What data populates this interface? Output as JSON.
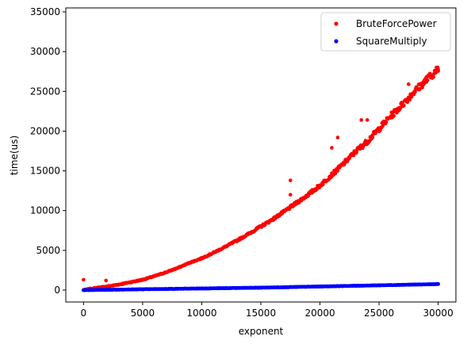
{
  "chart_data": {
    "type": "scatter",
    "title": "",
    "xlabel": "exponent",
    "ylabel": "time(us)",
    "xlim": [
      -1500,
      31500
    ],
    "ylim": [
      -1500,
      35500
    ],
    "xticks": [
      0,
      5000,
      10000,
      15000,
      20000,
      25000,
      30000
    ],
    "yticks": [
      0,
      5000,
      10000,
      15000,
      20000,
      25000,
      30000,
      35000
    ],
    "grid": false,
    "legend_position": "top-right",
    "series": [
      {
        "name": "BruteForcePower",
        "color": "#ff0000",
        "x": [
          0,
          1000,
          2000,
          3000,
          4000,
          5000,
          6000,
          7000,
          8000,
          9000,
          10000,
          11000,
          12000,
          13000,
          14000,
          15000,
          16000,
          17000,
          18000,
          19000,
          20000,
          21000,
          22000,
          23000,
          24000,
          25000,
          26000,
          27000,
          28000,
          29000,
          30000
        ],
        "y": [
          0,
          250,
          450,
          700,
          1000,
          1300,
          1750,
          2250,
          2800,
          3450,
          4000,
          4700,
          5450,
          6250,
          7100,
          8000,
          8900,
          9900,
          10950,
          12000,
          13150,
          14500,
          15900,
          17400,
          18700,
          20300,
          21900,
          23400,
          25000,
          26400,
          27800
        ]
      },
      {
        "name": "SquareMultiply",
        "color": "#0000ff",
        "x": [
          0,
          1000,
          2000,
          3000,
          4000,
          5000,
          6000,
          7000,
          8000,
          9000,
          10000,
          11000,
          12000,
          13000,
          14000,
          15000,
          16000,
          17000,
          18000,
          19000,
          20000,
          21000,
          22000,
          23000,
          24000,
          25000,
          26000,
          27000,
          28000,
          29000,
          30000
        ],
        "y": [
          0,
          20,
          40,
          60,
          80,
          100,
          120,
          140,
          160,
          180,
          200,
          220,
          240,
          260,
          280,
          300,
          330,
          360,
          390,
          420,
          450,
          480,
          510,
          540,
          570,
          600,
          630,
          660,
          690,
          720,
          750
        ]
      }
    ],
    "outliers": {
      "BruteForcePower": {
        "x": [
          0,
          1900,
          17500,
          17500,
          21000,
          21500,
          21500,
          23500,
          24000,
          27500,
          29000
        ],
        "y": [
          1300,
          1200,
          13800,
          12000,
          17900,
          19200,
          15000,
          21400,
          21400,
          25900,
          26800
        ]
      }
    }
  }
}
